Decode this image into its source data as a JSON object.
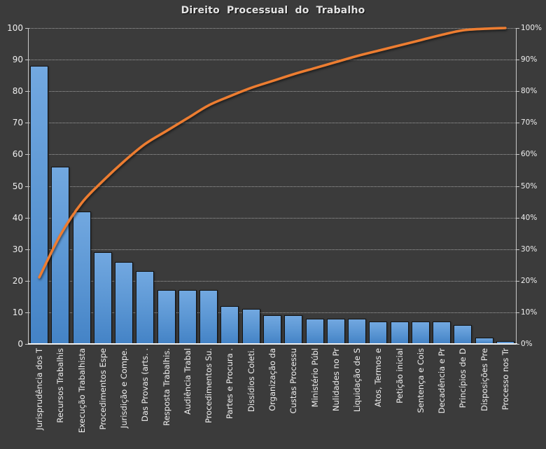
{
  "chart_data": {
    "type": "pareto",
    "title": "Direito Processual do Trabalho",
    "categories": [
      "Jurisprudência dos T",
      "Recursos Trabalhis",
      "Execução Trabalhista",
      "Procedimentos Espe",
      "Jurisdição e Compe.",
      "Das Provas (arts. .",
      "Resposta Trabalhis.",
      "Audiência Trabal",
      "Procedimentos Su.",
      "Partes e Procura .",
      "Dissídios Coleti.",
      "Organização da",
      "Custas Processu",
      "Ministério Públ",
      "Nulidades no Pr",
      "Liquidação de S",
      "Atos, Termos e",
      "Petição inicial",
      "Sentença e Cois",
      "Decadência e Pr",
      "Princípios de D",
      "Disposições Pre",
      "Processo nos Tr"
    ],
    "series": [
      {
        "type": "bar",
        "values": [
          88,
          56,
          42,
          29,
          26,
          23,
          17,
          17,
          17,
          12,
          11,
          9,
          9,
          8,
          8,
          8,
          7,
          7,
          7,
          7,
          6,
          2,
          1
        ]
      },
      {
        "type": "line",
        "values": [
          21.1,
          34.53,
          44.6,
          51.56,
          57.79,
          63.31,
          67.39,
          71.46,
          75.54,
          78.42,
          81.06,
          83.21,
          85.37,
          87.29,
          89.21,
          91.13,
          92.81,
          94.48,
          96.16,
          97.84,
          99.28,
          99.76,
          100.0
        ]
      }
    ],
    "left_axis": {
      "min": 0,
      "max": 100,
      "tick_step": 10,
      "ticks": [
        "0",
        "10",
        "20",
        "30",
        "40",
        "50",
        "60",
        "70",
        "80",
        "90",
        "100"
      ]
    },
    "right_axis": {
      "min": 0,
      "max": 100,
      "tick_step": 10,
      "ticks": [
        "0%",
        "10%",
        "20%",
        "30%",
        "40%",
        "50%",
        "60%",
        "70%",
        "80%",
        "90%",
        "100%"
      ]
    },
    "grid": true,
    "legend": "none",
    "colors": {
      "background": "#3B3B3B",
      "bar_fill_top": "#72A8E0",
      "bar_fill_bottom": "#4483C6",
      "bar_border": "#121212",
      "line": "#ED7D31",
      "gridline": "#DCDCDC",
      "axis": "#C8C8C8",
      "text": "#EFEFEF",
      "title_text": "#E4E4E4"
    }
  }
}
